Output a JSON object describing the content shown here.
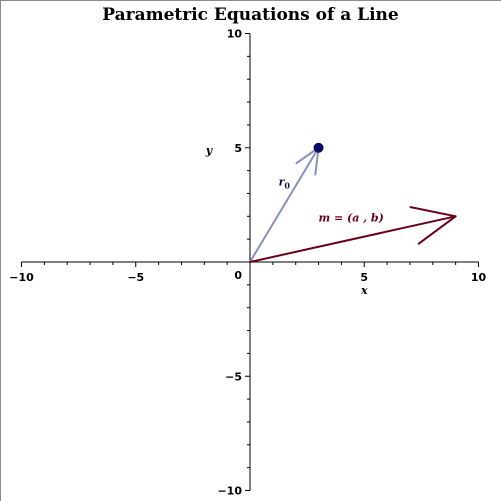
{
  "chart_data": {
    "type": "diagram",
    "title": "Parametric Equations of a Line",
    "xlabel": "x",
    "ylabel": "y",
    "xlim": [
      -10,
      10
    ],
    "ylim": [
      -10,
      10
    ],
    "x_ticks": [
      -10,
      -5,
      5,
      10
    ],
    "y_ticks": [
      10,
      5,
      -5,
      -10
    ],
    "origin_label": "0",
    "point": {
      "x": 3,
      "y": 5,
      "color": "#0a0a60"
    },
    "vectors": [
      {
        "name": "r0",
        "label_main": "r",
        "label_sub": "0",
        "from": [
          0,
          0
        ],
        "to": [
          3,
          5
        ],
        "color": "#8890bb"
      },
      {
        "name": "m",
        "label": "m = (a , b)",
        "from": [
          0,
          0
        ],
        "to": [
          9,
          2
        ],
        "color": "#6b0018"
      }
    ]
  }
}
